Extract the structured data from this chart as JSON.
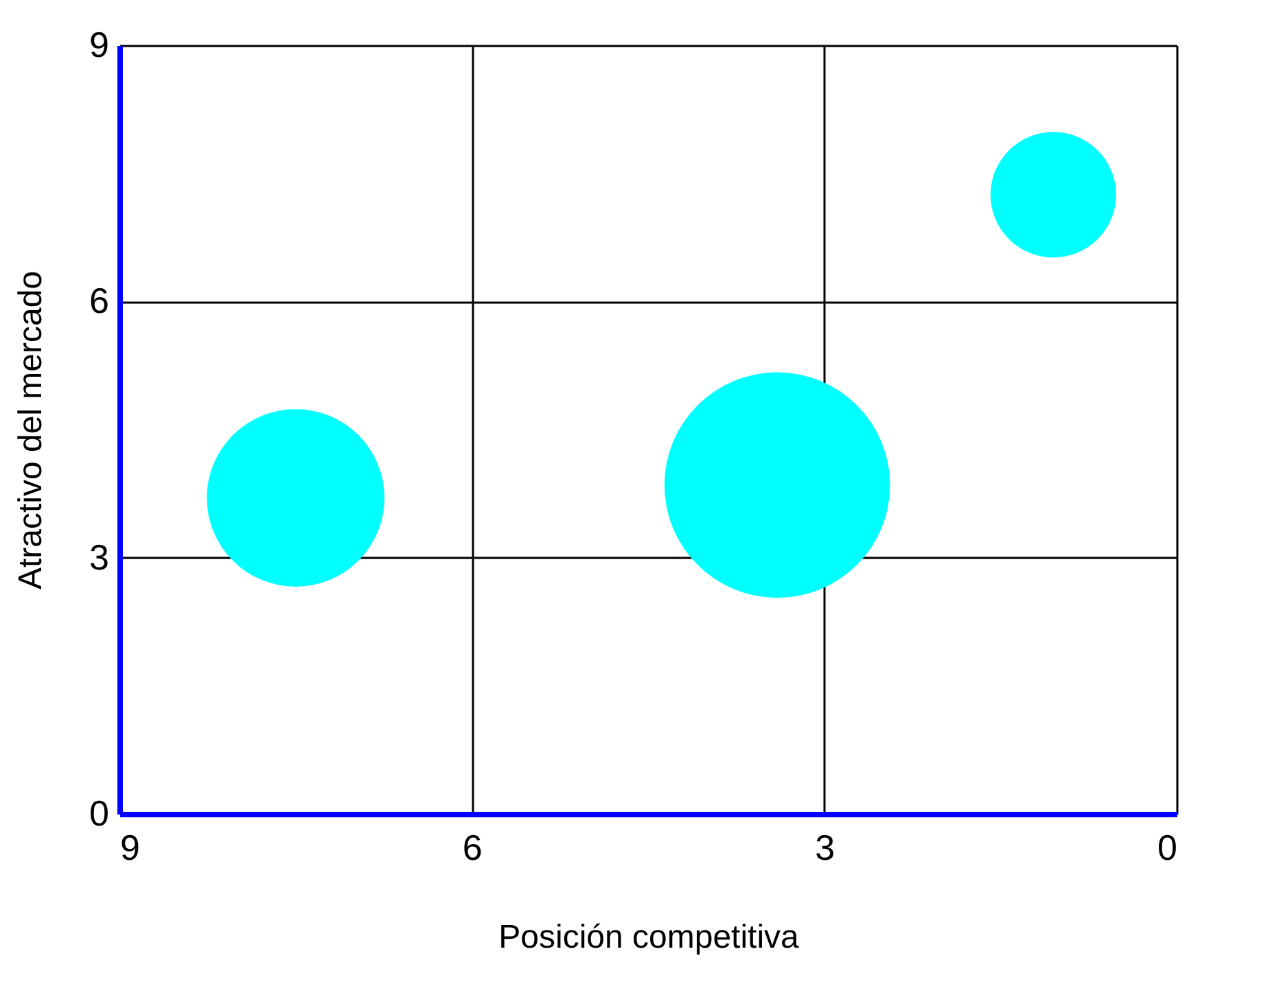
{
  "chart_data": {
    "type": "bubble",
    "xlabel": "Posición competitiva",
    "ylabel": "Atractivo del mercado",
    "x": [
      7.5,
      3.4,
      1.05
    ],
    "series": [
      {
        "color": "#00ffff",
        "values": [
          3.7,
          3.85,
          7.25
        ],
        "sizes": [
          0.62,
          1,
          0.31
        ]
      }
    ],
    "xlim": [
      9,
      0
    ],
    "xticks": [
      9,
      6,
      3,
      0
    ],
    "ylim": [
      0,
      9
    ],
    "yticks": [
      0,
      3,
      6,
      9
    ],
    "grid": true,
    "legend": false
  }
}
